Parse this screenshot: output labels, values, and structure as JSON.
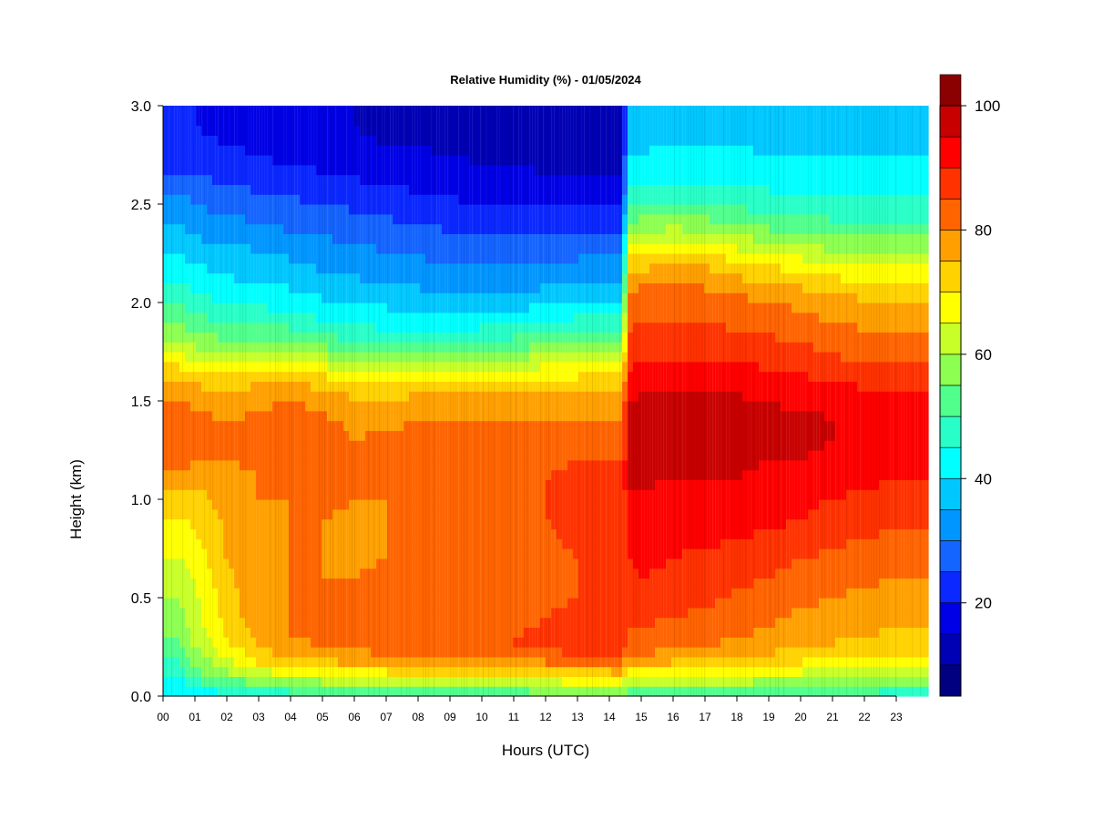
{
  "chart_data": {
    "type": "heatmap",
    "title": "Relative Humidity (%) - 01/05/2024",
    "xlabel": "Hours (UTC)",
    "ylabel": "Height (km)",
    "x_ticks": [
      "00",
      "01",
      "02",
      "03",
      "04",
      "05",
      "06",
      "07",
      "08",
      "09",
      "10",
      "11",
      "12",
      "13",
      "14",
      "15",
      "16",
      "17",
      "18",
      "19",
      "20",
      "21",
      "22",
      "23"
    ],
    "xlim": [
      0,
      24
    ],
    "y_ticks": [
      "0.0",
      "0.5",
      "1.0",
      "1.5",
      "2.0",
      "2.5",
      "3.0"
    ],
    "ylim": [
      0,
      3.0
    ],
    "colorbar": {
      "ticks": [
        "20",
        "40",
        "60",
        "80",
        "100"
      ],
      "range": [
        5,
        100
      ],
      "step": 5,
      "levels": [
        "#000080",
        "#0000b4",
        "#0000e6",
        "#0a28ff",
        "#1464ff",
        "#0096ff",
        "#00c8ff",
        "#00ffff",
        "#28ffc8",
        "#50ff8c",
        "#8cff50",
        "#c8ff28",
        "#ffff00",
        "#ffd200",
        "#ffa000",
        "#ff6400",
        "#ff3200",
        "#ff0000",
        "#c80000",
        "#8b0000"
      ]
    },
    "column_hours": [
      0,
      0.5,
      1,
      2,
      3,
      4,
      5,
      6,
      7,
      8,
      9,
      10,
      11,
      12,
      13,
      13.5,
      14,
      14.4,
      14.6,
      15,
      16,
      17,
      18,
      19,
      20,
      21,
      22,
      23,
      24
    ],
    "row_heights_km": [
      0,
      0.05,
      0.1,
      0.15,
      0.2,
      0.25,
      0.3,
      0.4,
      0.5,
      0.6,
      0.7,
      0.8,
      0.9,
      1.0,
      1.1,
      1.2,
      1.3,
      1.4,
      1.5,
      1.6,
      1.7,
      1.8,
      1.9,
      2.0,
      2.1,
      2.2,
      2.3,
      2.4,
      2.5,
      2.6,
      2.7,
      2.8,
      2.9,
      3.0
    ],
    "profiles_percent": [
      [
        40,
        42,
        44,
        47,
        50,
        52,
        55,
        58,
        60,
        62,
        65,
        67,
        70,
        73,
        78,
        82,
        84,
        83,
        81,
        76,
        68,
        60,
        55,
        50,
        45,
        42,
        38,
        35,
        32,
        28,
        24,
        22,
        20,
        20
      ],
      [
        38,
        42,
        45,
        48,
        51,
        54,
        56,
        58,
        60,
        62,
        65,
        67,
        70,
        73,
        78,
        82,
        84,
        83,
        81,
        76,
        68,
        60,
        55,
        50,
        45,
        42,
        38,
        35,
        32,
        28,
        24,
        22,
        20,
        20
      ],
      [
        40,
        46,
        52,
        56,
        58,
        60,
        62,
        63,
        64,
        65,
        67,
        69,
        71,
        73,
        77,
        80,
        82,
        81,
        79,
        74,
        66,
        58,
        52,
        47,
        43,
        40,
        36,
        33,
        30,
        27,
        23,
        21,
        20,
        20
      ],
      [
        42,
        50,
        58,
        62,
        65,
        68,
        70,
        72,
        73,
        74,
        75,
        76,
        76,
        77,
        78,
        80,
        81,
        80,
        78,
        73,
        65,
        56,
        50,
        45,
        41,
        38,
        35,
        32,
        28,
        25,
        22,
        20,
        19,
        19
      ],
      [
        44,
        52,
        60,
        68,
        72,
        75,
        77,
        78,
        78,
        79,
        79,
        79,
        79,
        80,
        80,
        81,
        82,
        81,
        79,
        74,
        65,
        56,
        49,
        44,
        40,
        37,
        34,
        30,
        27,
        24,
        21,
        19,
        18,
        18
      ],
      [
        46,
        54,
        62,
        70,
        75,
        78,
        80,
        80,
        80,
        80,
        80,
        80,
        80,
        80,
        81,
        83,
        84,
        83,
        80,
        75,
        66,
        56,
        48,
        43,
        39,
        36,
        32,
        29,
        26,
        23,
        20,
        18,
        17,
        17
      ],
      [
        47,
        56,
        64,
        72,
        77,
        80,
        81,
        81,
        80,
        80,
        80,
        80,
        80,
        81,
        82,
        82,
        82,
        81,
        78,
        73,
        63,
        53,
        46,
        41,
        37,
        34,
        31,
        28,
        25,
        22,
        19,
        17,
        16,
        16
      ],
      [
        48,
        57,
        65,
        73,
        78,
        81,
        82,
        82,
        81,
        80,
        79,
        79,
        79,
        80,
        80,
        80,
        80,
        79,
        76,
        70,
        60,
        50,
        44,
        40,
        36,
        33,
        30,
        27,
        24,
        21,
        18,
        16,
        15,
        15
      ],
      [
        49,
        58,
        66,
        74,
        79,
        82,
        83,
        82,
        81,
        81,
        80,
        80,
        80,
        80,
        80,
        81,
        81,
        79,
        76,
        70,
        60,
        50,
        43,
        39,
        35,
        32,
        29,
        26,
        23,
        20,
        17,
        15,
        14,
        14
      ],
      [
        50,
        58,
        66,
        75,
        80,
        83,
        84,
        83,
        82,
        81,
        81,
        81,
        81,
        81,
        81,
        82,
        82,
        80,
        77,
        70,
        60,
        50,
        42,
        38,
        34,
        31,
        28,
        25,
        22,
        19,
        16,
        15,
        14,
        14
      ],
      [
        50,
        58,
        67,
        75,
        81,
        84,
        84,
        83,
        82,
        82,
        81,
        81,
        81,
        81,
        82,
        82,
        82,
        80,
        77,
        70,
        60,
        50,
        42,
        37,
        33,
        30,
        27,
        24,
        21,
        18,
        16,
        14,
        13,
        13
      ],
      [
        50,
        58,
        67,
        76,
        81,
        84,
        85,
        84,
        83,
        82,
        82,
        82,
        82,
        82,
        82,
        83,
        82,
        80,
        77,
        71,
        61,
        51,
        43,
        37,
        33,
        30,
        26,
        23,
        20,
        18,
        15,
        14,
        13,
        13
      ],
      [
        50,
        58,
        67,
        76,
        82,
        85,
        85,
        84,
        83,
        83,
        83,
        83,
        83,
        83,
        83,
        83,
        82,
        80,
        77,
        71,
        62,
        52,
        44,
        38,
        33,
        29,
        26,
        23,
        20,
        17,
        15,
        13,
        12,
        12
      ],
      [
        52,
        60,
        68,
        77,
        83,
        86,
        86,
        85,
        84,
        84,
        84,
        84,
        85,
        85,
        85,
        84,
        82,
        80,
        77,
        72,
        63,
        53,
        45,
        39,
        34,
        30,
        26,
        23,
        20,
        17,
        14,
        13,
        12,
        12
      ],
      [
        54,
        62,
        70,
        78,
        84,
        87,
        87,
        86,
        85,
        85,
        85,
        86,
        86,
        86,
        86,
        85,
        83,
        80,
        77,
        72,
        64,
        55,
        47,
        40,
        35,
        31,
        27,
        23,
        20,
        17,
        14,
        12,
        11,
        11
      ],
      [
        55,
        62,
        70,
        79,
        85,
        87,
        87,
        86,
        85,
        85,
        85,
        86,
        86,
        86,
        86,
        85,
        83,
        80,
        77,
        72,
        64,
        55,
        47,
        40,
        35,
        31,
        27,
        23,
        20,
        17,
        14,
        12,
        11,
        11
      ],
      [
        56,
        63,
        71,
        79,
        85,
        87,
        87,
        86,
        85,
        85,
        85,
        86,
        86,
        86,
        86,
        85,
        83,
        80,
        77,
        72,
        64,
        55,
        47,
        40,
        35,
        31,
        27,
        23,
        20,
        17,
        14,
        12,
        11,
        11
      ],
      [
        56,
        63,
        71,
        79,
        85,
        87,
        87,
        86,
        85,
        85,
        85,
        86,
        86,
        86,
        86,
        85,
        83,
        80,
        77,
        72,
        64,
        55,
        47,
        40,
        35,
        31,
        27,
        23,
        20,
        17,
        14,
        12,
        11,
        11
      ],
      [
        48,
        56,
        64,
        72,
        78,
        82,
        84,
        86,
        88,
        89,
        90,
        91,
        93,
        94,
        96,
        97,
        98,
        97,
        95,
        92,
        89,
        86,
        84,
        82,
        78,
        72,
        64,
        56,
        50,
        45,
        42,
        39,
        37,
        36
      ],
      [
        49,
        57,
        65,
        73,
        79,
        82,
        84,
        86,
        88,
        90,
        91,
        92,
        93,
        94,
        96,
        97,
        98,
        97,
        96,
        93,
        90,
        87,
        85,
        83,
        79,
        73,
        65,
        57,
        50,
        45,
        42,
        39,
        37,
        36
      ],
      [
        50,
        57,
        65,
        72,
        78,
        81,
        83,
        85,
        87,
        89,
        90,
        91,
        92,
        93,
        95,
        96,
        97,
        97,
        96,
        93,
        90,
        87,
        85,
        83,
        80,
        75,
        67,
        58,
        51,
        46,
        42,
        40,
        38,
        37
      ],
      [
        50,
        57,
        64,
        71,
        77,
        80,
        82,
        84,
        86,
        88,
        89,
        91,
        92,
        93,
        95,
        96,
        97,
        97,
        96,
        93,
        90,
        87,
        85,
        83,
        79,
        74,
        66,
        57,
        50,
        45,
        42,
        40,
        38,
        37
      ],
      [
        50,
        57,
        64,
        70,
        75,
        78,
        80,
        82,
        84,
        86,
        88,
        90,
        92,
        93,
        95,
        96,
        97,
        97,
        96,
        93,
        90,
        87,
        84,
        82,
        77,
        71,
        63,
        55,
        49,
        45,
        42,
        40,
        38,
        37
      ],
      [
        49,
        56,
        63,
        69,
        74,
        77,
        79,
        81,
        83,
        85,
        87,
        89,
        91,
        92,
        94,
        95,
        96,
        96,
        95,
        92,
        89,
        86,
        83,
        80,
        75,
        69,
        61,
        53,
        48,
        44,
        41,
        39,
        38,
        37
      ],
      [
        48,
        55,
        62,
        68,
        72,
        75,
        77,
        79,
        81,
        83,
        85,
        88,
        90,
        91,
        93,
        95,
        96,
        96,
        94,
        91,
        88,
        85,
        82,
        79,
        74,
        67,
        59,
        52,
        47,
        44,
        41,
        39,
        38,
        37
      ],
      [
        47,
        54,
        61,
        67,
        71,
        74,
        76,
        78,
        80,
        82,
        84,
        86,
        88,
        90,
        92,
        94,
        95,
        95,
        94,
        90,
        86,
        83,
        80,
        77,
        72,
        65,
        58,
        51,
        47,
        44,
        41,
        39,
        38,
        37
      ],
      [
        47,
        54,
        60,
        66,
        70,
        73,
        75,
        77,
        79,
        81,
        83,
        85,
        87,
        89,
        91,
        93,
        94,
        94,
        92,
        89,
        85,
        82,
        79,
        76,
        71,
        64,
        57,
        51,
        47,
        44,
        41,
        39,
        38,
        37
      ],
      [
        46,
        53,
        59,
        65,
        69,
        72,
        74,
        76,
        78,
        80,
        82,
        84,
        86,
        88,
        90,
        92,
        93,
        93,
        91,
        88,
        84,
        81,
        78,
        75,
        70,
        64,
        57,
        51,
        47,
        44,
        41,
        39,
        38,
        37
      ],
      [
        46,
        53,
        59,
        65,
        69,
        72,
        74,
        76,
        78,
        80,
        82,
        84,
        86,
        88,
        90,
        92,
        93,
        93,
        91,
        88,
        84,
        81,
        78,
        75,
        70,
        64,
        57,
        51,
        47,
        44,
        41,
        39,
        38,
        37
      ]
    ]
  }
}
